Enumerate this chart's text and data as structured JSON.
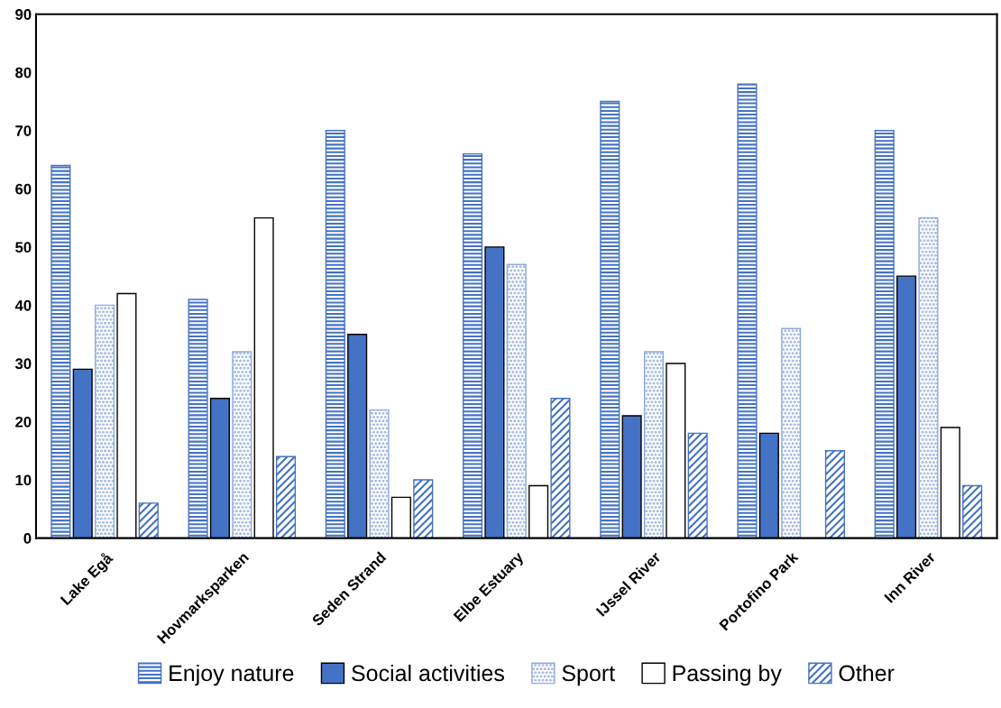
{
  "chart_data": {
    "type": "bar",
    "categories": [
      "Lake Egå",
      "Hovmarksparken",
      "Seden Strand",
      "Elbe Estuary",
      "IJssel River",
      "Portofino Park",
      "Inn River"
    ],
    "series": [
      {
        "name": "Enjoy nature",
        "color": "#4472c4",
        "values": [
          64,
          41,
          70,
          66,
          75,
          78,
          70
        ]
      },
      {
        "name": "Social activities",
        "color": "#4472c4",
        "values": [
          29,
          24,
          35,
          50,
          21,
          18,
          45
        ]
      },
      {
        "name": "Sport",
        "color": "#8faadc",
        "values": [
          40,
          32,
          22,
          47,
          32,
          36,
          55
        ]
      },
      {
        "name": "Passing by",
        "color": "#ffffff",
        "values": [
          42,
          55,
          7,
          9,
          30,
          null,
          19
        ]
      },
      {
        "name": "Other",
        "color": "#4472c4",
        "values": [
          6,
          14,
          10,
          24,
          18,
          15,
          9
        ]
      }
    ],
    "ylim": [
      0,
      90
    ],
    "yticks": [
      0,
      10,
      20,
      30,
      40,
      50,
      60,
      70,
      80,
      90
    ],
    "grid": false,
    "legend": "bottom"
  }
}
